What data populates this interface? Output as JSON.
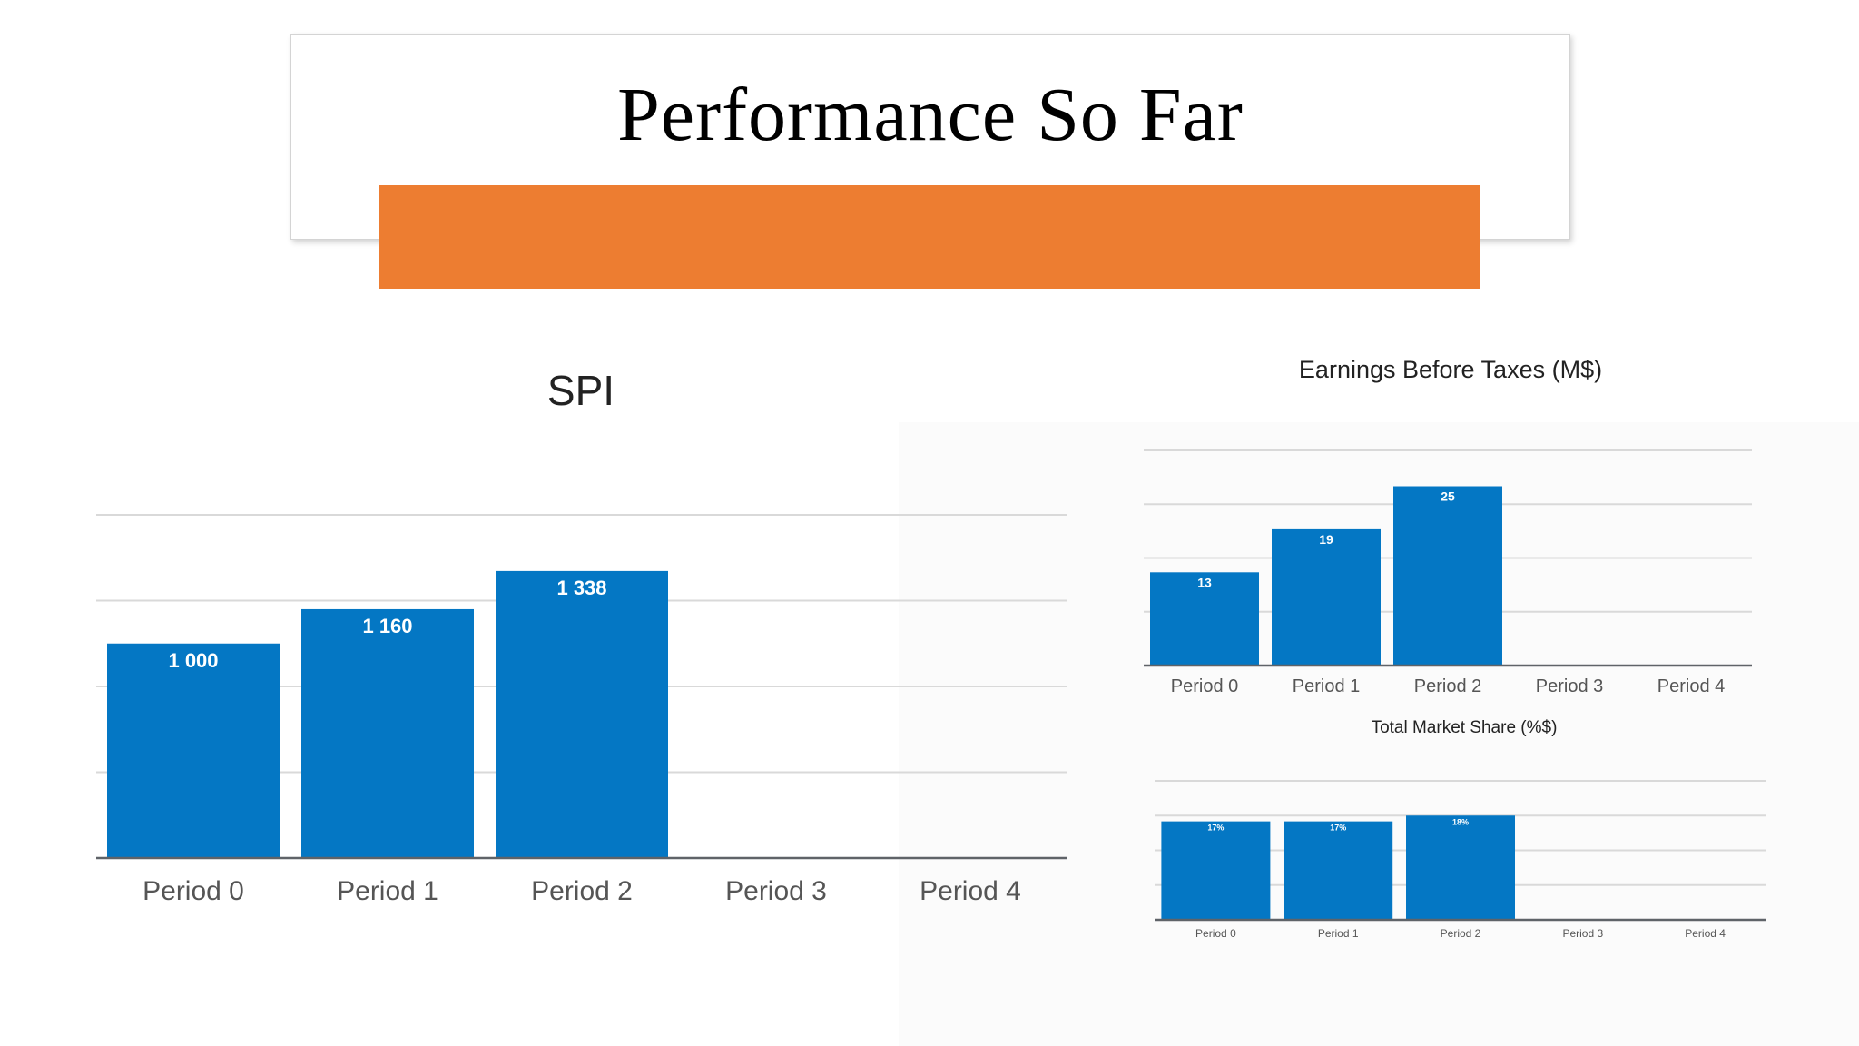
{
  "slide": {
    "title": "Performance So Far",
    "accent_color": "#ED7D31"
  },
  "chart_data": [
    {
      "type": "bar",
      "title": "SPI",
      "categories": [
        "Period 0",
        "Period 1",
        "Period 2",
        "Period 3",
        "Period 4"
      ],
      "values": [
        1000,
        1160,
        1338,
        null,
        null
      ],
      "data_labels": [
        "1 000",
        "1 160",
        "1 338",
        "",
        ""
      ],
      "ylim": [
        0,
        1600
      ],
      "grid": true,
      "bar_color": "#0477C4"
    },
    {
      "type": "bar",
      "title": "Earnings Before Taxes (M$)",
      "categories": [
        "Period 0",
        "Period 1",
        "Period 2",
        "Period 3",
        "Period 4"
      ],
      "values": [
        13,
        19,
        25,
        null,
        null
      ],
      "data_labels": [
        "13",
        "19",
        "25",
        "",
        ""
      ],
      "ylim": [
        0,
        30
      ],
      "grid": true,
      "bar_color": "#0477C4"
    },
    {
      "type": "bar",
      "title": "Total Market Share (%$)",
      "categories": [
        "Period 0",
        "Period 1",
        "Period 2",
        "Period 3",
        "Period 4"
      ],
      "values": [
        17,
        17,
        18,
        null,
        null
      ],
      "data_labels": [
        "17%",
        "17%",
        "18%",
        "",
        ""
      ],
      "ylim": [
        0,
        24
      ],
      "grid": true,
      "bar_color": "#0477C4"
    }
  ]
}
